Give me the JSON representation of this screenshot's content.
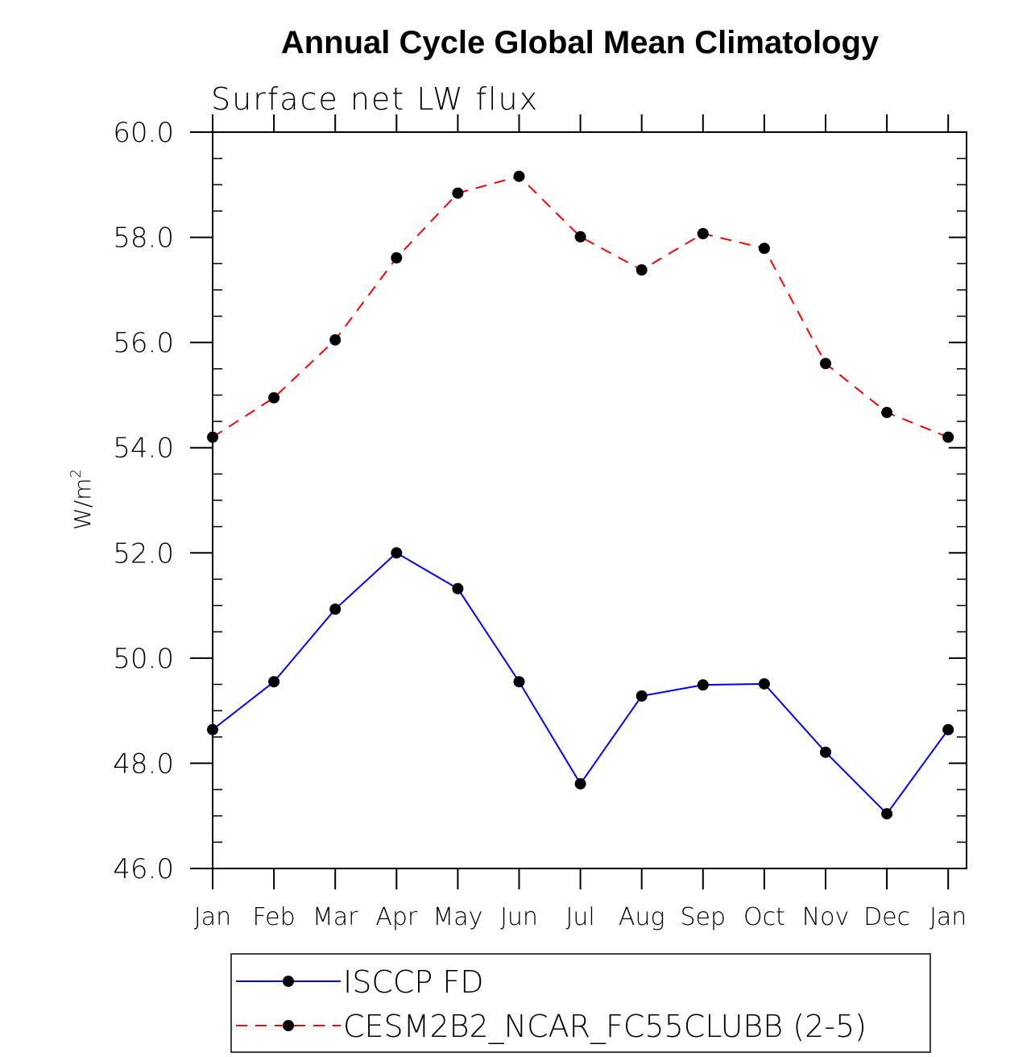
{
  "chart_data": {
    "type": "line",
    "title": "Annual Cycle Global Mean Climatology",
    "subtitle": "Surface net LW flux",
    "ylabel": "W/m",
    "ylabel_superscript": "2",
    "xlabel": "",
    "categories": [
      "Jan",
      "Feb",
      "Mar",
      "Apr",
      "May",
      "Jun",
      "Jul",
      "Aug",
      "Sep",
      "Oct",
      "Nov",
      "Dec",
      "Jan"
    ],
    "ylim": [
      46,
      60
    ],
    "yticks": [
      "46.0",
      "48.0",
      "50.0",
      "52.0",
      "54.0",
      "56.0",
      "58.0",
      "60.0"
    ],
    "ytick_values": [
      46,
      48,
      50,
      52,
      54,
      56,
      58,
      60
    ],
    "grid": false,
    "legend_placement": "bottom",
    "series": [
      {
        "name": "ISCCP FD",
        "color": "#0000ff",
        "dash": "solid",
        "values": [
          48.64,
          49.55,
          50.93,
          52.0,
          51.32,
          49.55,
          47.61,
          49.28,
          49.49,
          49.51,
          48.21,
          47.04,
          48.64
        ]
      },
      {
        "name": "CESM2B2_NCAR_FC55CLUBB (2-5)",
        "color": "#ff0000",
        "dash": "dashed",
        "values": [
          54.2,
          54.95,
          56.05,
          57.61,
          58.84,
          59.16,
          58.01,
          57.38,
          58.07,
          57.79,
          55.6,
          54.67,
          54.2
        ]
      }
    ]
  }
}
